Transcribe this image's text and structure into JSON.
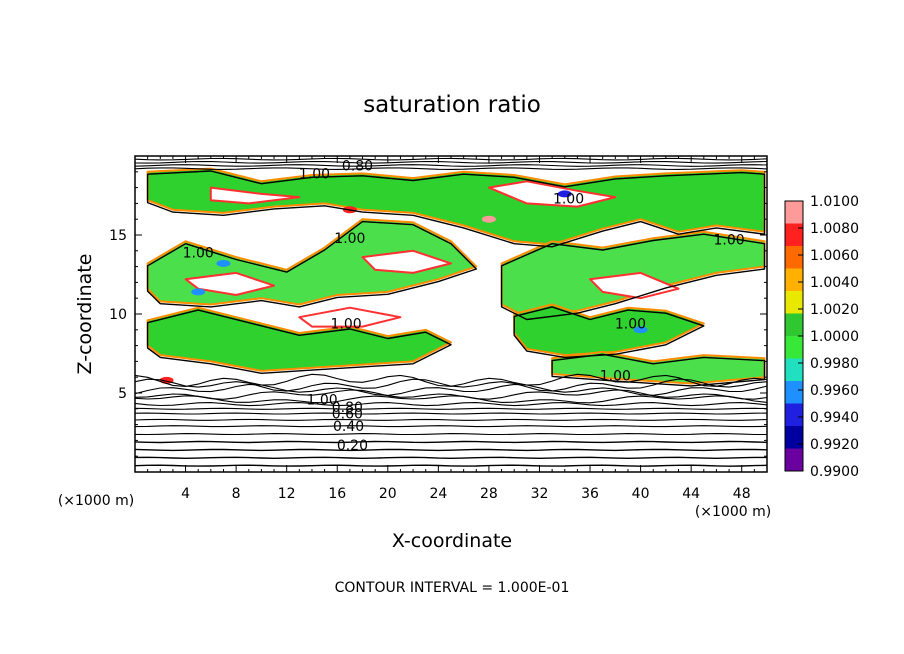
{
  "chart_data": {
    "type": "heatmap",
    "title": "saturation ratio",
    "xlabel": "X-coordinate",
    "ylabel": "Z-coordinate",
    "x_unit_left": "(×1000 m)",
    "x_unit_right": "(×1000 m)",
    "xlim": [
      0,
      50
    ],
    "ylim": [
      0,
      20
    ],
    "xticks": [
      4,
      8,
      12,
      16,
      20,
      24,
      28,
      32,
      36,
      40,
      44,
      48
    ],
    "yticks": [
      5,
      10,
      15
    ],
    "footer": "CONTOUR INTERVAL = 1.000E-01",
    "colorbar": {
      "min": 0.99,
      "max": 1.01,
      "labels": [
        "1.0100",
        "1.0080",
        "1.0060",
        "1.0040",
        "1.0020",
        "1.0000",
        "0.9980",
        "0.9960",
        "0.9940",
        "0.9920",
        "0.9900"
      ],
      "colors": [
        "#ff9a9a",
        "#ff2020",
        "#ff6a00",
        "#ffb000",
        "#e8e800",
        "#30c830",
        "#38e838",
        "#20e0c0",
        "#1e90ff",
        "#2020e0",
        "#0000a0",
        "#6a00a0"
      ]
    },
    "contour_labels": [
      {
        "text": "1.00",
        "x": 14.2,
        "z": 18.9
      },
      {
        "text": "0.80",
        "x": 17.6,
        "z": 19.4
      },
      {
        "text": "1.00",
        "x": 34.3,
        "z": 17.3
      },
      {
        "text": "1.00",
        "x": 17.0,
        "z": 14.8
      },
      {
        "text": "1.00",
        "x": 5.0,
        "z": 13.9
      },
      {
        "text": "1.00",
        "x": 47.0,
        "z": 14.7
      },
      {
        "text": "1.00",
        "x": 16.7,
        "z": 9.4
      },
      {
        "text": "1.00",
        "x": 39.2,
        "z": 9.4
      },
      {
        "text": "1.00",
        "x": 38.0,
        "z": 6.1
      },
      {
        "text": "1.00",
        "x": 14.8,
        "z": 4.6
      },
      {
        "text": "0.80",
        "x": 16.8,
        "z": 4.1
      },
      {
        "text": "0.60",
        "x": 16.8,
        "z": 3.7
      },
      {
        "text": "0.40",
        "x": 16.9,
        "z": 2.9
      },
      {
        "text": "0.20",
        "x": 17.2,
        "z": 1.7
      }
    ]
  }
}
